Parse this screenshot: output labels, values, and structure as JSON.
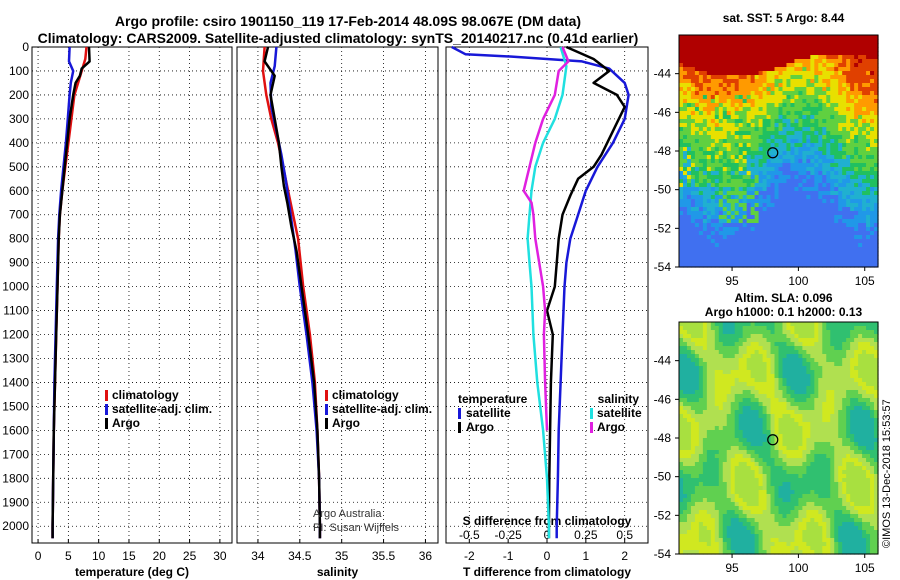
{
  "title_line1": "Argo profile: csiro 1901150_119 17-Feb-2014 48.09S 98.067E (DM data)",
  "title_line2": "Climatology: CARS2009. Satellite-adjusted climatology: synTS_20140217.nc (0.41d earlier)",
  "credit_line1": "Argo Australia",
  "credit_line2": "PI: Susan Wijffels",
  "imos_stamp": "©IMOS 13-Dec-2018 15:53:57",
  "colors": {
    "climatology": "#e01010",
    "satellite": "#1818d8",
    "argo": "#000000",
    "cyan": "#20e0e0",
    "magenta": "#e020e0"
  },
  "chart_data": [
    {
      "type": "line",
      "name": "temperature-panel",
      "xlabel": "temperature (deg C)",
      "ylabel": "",
      "xlim": [
        -1,
        32
      ],
      "ylim": [
        2070,
        0
      ],
      "x_ticks": [
        0,
        5,
        10,
        15,
        20,
        25,
        30
      ],
      "y_ticks": [
        0,
        100,
        200,
        300,
        400,
        500,
        600,
        700,
        800,
        900,
        1000,
        1100,
        1200,
        1300,
        1400,
        1500,
        1600,
        1700,
        1800,
        1900,
        2000
      ],
      "grid": true,
      "legend": {
        "position": "lower-right",
        "entries": [
          "climatology",
          "satellite-adj. clim.",
          "Argo"
        ]
      },
      "series": [
        {
          "name": "climatology",
          "color": "#e01010",
          "points": [
            [
              8.0,
              0
            ],
            [
              7.8,
              50
            ],
            [
              7.2,
              100
            ],
            [
              6.6,
              150
            ],
            [
              6.0,
              200
            ],
            [
              5.5,
              300
            ],
            [
              5.0,
              400
            ],
            [
              4.5,
              500
            ],
            [
              4.0,
              600
            ],
            [
              3.6,
              700
            ],
            [
              3.4,
              800
            ],
            [
              3.2,
              1000
            ],
            [
              3.0,
              1200
            ],
            [
              2.8,
              1400
            ],
            [
              2.6,
              1600
            ],
            [
              2.5,
              1800
            ],
            [
              2.4,
              2000
            ],
            [
              2.4,
              2050
            ]
          ]
        },
        {
          "name": "satellite-adj. clim.",
          "color": "#1818d8",
          "points": [
            [
              5.2,
              0
            ],
            [
              5.1,
              60
            ],
            [
              5.8,
              100
            ],
            [
              5.4,
              150
            ],
            [
              5.2,
              200
            ],
            [
              4.9,
              300
            ],
            [
              4.6,
              400
            ],
            [
              4.2,
              500
            ],
            [
              3.8,
              600
            ],
            [
              3.5,
              700
            ],
            [
              3.3,
              800
            ],
            [
              3.1,
              1000
            ],
            [
              2.9,
              1200
            ],
            [
              2.7,
              1400
            ],
            [
              2.6,
              1600
            ],
            [
              2.5,
              1800
            ],
            [
              2.4,
              2000
            ],
            [
              2.4,
              2050
            ]
          ]
        },
        {
          "name": "Argo",
          "color": "#000000",
          "points": [
            [
              8.4,
              0
            ],
            [
              8.5,
              60
            ],
            [
              7.2,
              90
            ],
            [
              6.9,
              120
            ],
            [
              6.2,
              150
            ],
            [
              5.8,
              200
            ],
            [
              5.2,
              300
            ],
            [
              4.8,
              400
            ],
            [
              4.4,
              500
            ],
            [
              4.0,
              600
            ],
            [
              3.6,
              700
            ],
            [
              3.4,
              800
            ],
            [
              3.2,
              1000
            ],
            [
              3.0,
              1200
            ],
            [
              2.8,
              1400
            ],
            [
              2.6,
              1600
            ],
            [
              2.5,
              1800
            ],
            [
              2.4,
              2000
            ],
            [
              2.4,
              2050
            ]
          ]
        }
      ]
    },
    {
      "type": "line",
      "name": "salinity-panel",
      "xlabel": "salinity",
      "ylabel": "",
      "xlim": [
        33.75,
        36.15
      ],
      "ylim": [
        2070,
        0
      ],
      "x_ticks": [
        34,
        34.5,
        35,
        35.5,
        36
      ],
      "grid": true,
      "legend": {
        "position": "lower-right",
        "entries": [
          "climatology",
          "satellite-adj. clim.",
          "Argo"
        ]
      },
      "series": [
        {
          "name": "climatology",
          "color": "#e01010",
          "points": [
            [
              34.08,
              0
            ],
            [
              34.06,
              100
            ],
            [
              34.1,
              200
            ],
            [
              34.16,
              300
            ],
            [
              34.24,
              400
            ],
            [
              34.3,
              500
            ],
            [
              34.36,
              600
            ],
            [
              34.42,
              700
            ],
            [
              34.48,
              800
            ],
            [
              34.54,
              1000
            ],
            [
              34.62,
              1200
            ],
            [
              34.68,
              1400
            ],
            [
              34.71,
              1600
            ],
            [
              34.73,
              1800
            ],
            [
              34.74,
              2000
            ],
            [
              34.74,
              2050
            ]
          ]
        },
        {
          "name": "satellite-adj. clim.",
          "color": "#1818d8",
          "points": [
            [
              34.22,
              0
            ],
            [
              34.2,
              80
            ],
            [
              34.15,
              150
            ],
            [
              34.16,
              250
            ],
            [
              34.22,
              350
            ],
            [
              34.28,
              450
            ],
            [
              34.33,
              550
            ],
            [
              34.37,
              650
            ],
            [
              34.41,
              750
            ],
            [
              34.45,
              850
            ],
            [
              34.5,
              1000
            ],
            [
              34.58,
              1200
            ],
            [
              34.65,
              1400
            ],
            [
              34.7,
              1600
            ],
            [
              34.73,
              1800
            ],
            [
              34.74,
              2000
            ],
            [
              34.74,
              2050
            ]
          ]
        },
        {
          "name": "Argo",
          "color": "#000000",
          "points": [
            [
              34.12,
              0
            ],
            [
              34.08,
              60
            ],
            [
              34.2,
              120
            ],
            [
              34.15,
              200
            ],
            [
              34.2,
              300
            ],
            [
              34.25,
              400
            ],
            [
              34.28,
              500
            ],
            [
              34.31,
              580
            ],
            [
              34.35,
              650
            ],
            [
              34.4,
              750
            ],
            [
              34.46,
              850
            ],
            [
              34.52,
              1000
            ],
            [
              34.6,
              1200
            ],
            [
              34.67,
              1400
            ],
            [
              34.71,
              1600
            ],
            [
              34.73,
              1800
            ],
            [
              34.74,
              2000
            ],
            [
              34.74,
              2050
            ]
          ]
        }
      ]
    },
    {
      "type": "line",
      "name": "difference-panel",
      "xlabel": "T difference from climatology",
      "xlabel_top": "S difference from climatology",
      "xlim": [
        -2.6,
        2.6
      ],
      "ylim": [
        2070,
        0
      ],
      "x_ticks": [
        -2,
        -1,
        0,
        1,
        2
      ],
      "x_ticks_top": [
        -0.5,
        -0.25,
        0,
        0.25,
        0.5
      ],
      "x_ticks_top_labels": [
        "-0.5",
        "-0.25",
        "0",
        "0.25",
        "0.5"
      ],
      "grid": true,
      "legend": {
        "position": "lower",
        "left_header": "temperature",
        "right_header": "salinity",
        "left_entries": [
          "satellite",
          "Argo"
        ],
        "right_entries": [
          "satellite",
          "Argo"
        ]
      },
      "series": [
        {
          "name": "temperature satellite",
          "color": "#1818d8",
          "points": [
            [
              -2.45,
              0
            ],
            [
              -2.1,
              30
            ],
            [
              -0.9,
              40
            ],
            [
              0.9,
              60
            ],
            [
              1.6,
              90
            ],
            [
              2.0,
              150
            ],
            [
              2.1,
              200
            ],
            [
              2.0,
              300
            ],
            [
              1.7,
              400
            ],
            [
              1.3,
              500
            ],
            [
              1.0,
              600
            ],
            [
              0.8,
              700
            ],
            [
              0.6,
              800
            ],
            [
              0.5,
              900
            ],
            [
              0.45,
              1000
            ],
            [
              0.4,
              1200
            ],
            [
              0.35,
              1400
            ],
            [
              0.3,
              1600
            ],
            [
              0.28,
              1800
            ],
            [
              0.25,
              2000
            ],
            [
              0.25,
              2050
            ]
          ]
        },
        {
          "name": "temperature Argo",
          "color": "#000000",
          "points": [
            [
              0.5,
              0
            ],
            [
              1.2,
              50
            ],
            [
              1.6,
              100
            ],
            [
              1.2,
              150
            ],
            [
              1.8,
              200
            ],
            [
              2.0,
              250
            ],
            [
              1.7,
              350
            ],
            [
              1.4,
              450
            ],
            [
              1.2,
              500
            ],
            [
              0.8,
              550
            ],
            [
              0.6,
              620
            ],
            [
              0.4,
              700
            ],
            [
              0.3,
              800
            ],
            [
              0.2,
              1000
            ],
            [
              0.0,
              1100
            ],
            [
              0.15,
              1200
            ],
            [
              0.1,
              1400
            ],
            [
              0.08,
              1600
            ],
            [
              0.06,
              1800
            ],
            [
              0.05,
              2000
            ],
            [
              0.05,
              2050
            ]
          ]
        },
        {
          "name": "salinity satellite",
          "color": "#20e0e0",
          "points": [
            [
              0.35,
              0
            ],
            [
              0.5,
              80
            ],
            [
              0.4,
              200
            ],
            [
              0.2,
              300
            ],
            [
              -0.1,
              400
            ],
            [
              -0.3,
              500
            ],
            [
              -0.4,
              600
            ],
            [
              -0.45,
              700
            ],
            [
              -0.5,
              800
            ],
            [
              -0.45,
              900
            ],
            [
              -0.4,
              1000
            ],
            [
              -0.35,
              1200
            ],
            [
              -0.25,
              1400
            ],
            [
              -0.1,
              1600
            ],
            [
              0.0,
              1800
            ],
            [
              0.05,
              2000
            ],
            [
              0.05,
              2050
            ]
          ]
        },
        {
          "name": "salinity Argo",
          "color": "#e020e0",
          "points": [
            [
              0.4,
              0
            ],
            [
              0.55,
              60
            ],
            [
              0.3,
              100
            ],
            [
              0.2,
              200
            ],
            [
              -0.1,
              300
            ],
            [
              -0.3,
              400
            ],
            [
              -0.45,
              500
            ],
            [
              -0.6,
              600
            ],
            [
              -0.4,
              650
            ],
            [
              -0.35,
              700
            ],
            [
              -0.3,
              800
            ],
            [
              -0.2,
              900
            ],
            [
              -0.1,
              1000
            ],
            [
              -0.05,
              1100
            ],
            [
              -0.08,
              1200
            ],
            [
              -0.05,
              1400
            ],
            [
              0.0,
              1600
            ]
          ]
        }
      ]
    },
    {
      "type": "heatmap",
      "name": "sst-map",
      "title": "sat. SST: 5 Argo: 8.44",
      "xlim": [
        91,
        106
      ],
      "ylim": [
        -54,
        -42
      ],
      "x_ticks": [
        95,
        100,
        105
      ],
      "y_ticks": [
        -44,
        -46,
        -48,
        -50,
        -52,
        -54
      ],
      "marker": {
        "lon": 98.067,
        "lat": -48.09
      }
    },
    {
      "type": "heatmap",
      "name": "sla-map",
      "title": "Altim. SLA: 0.096",
      "subtitle": "Argo h1000: 0.1 h2000: 0.13",
      "xlim": [
        91,
        106
      ],
      "ylim": [
        -54,
        -42
      ],
      "x_ticks": [
        95,
        100,
        105
      ],
      "y_ticks": [
        -44,
        -46,
        -48,
        -50,
        -52,
        -54
      ],
      "marker": {
        "lon": 98.067,
        "lat": -48.09
      }
    }
  ]
}
